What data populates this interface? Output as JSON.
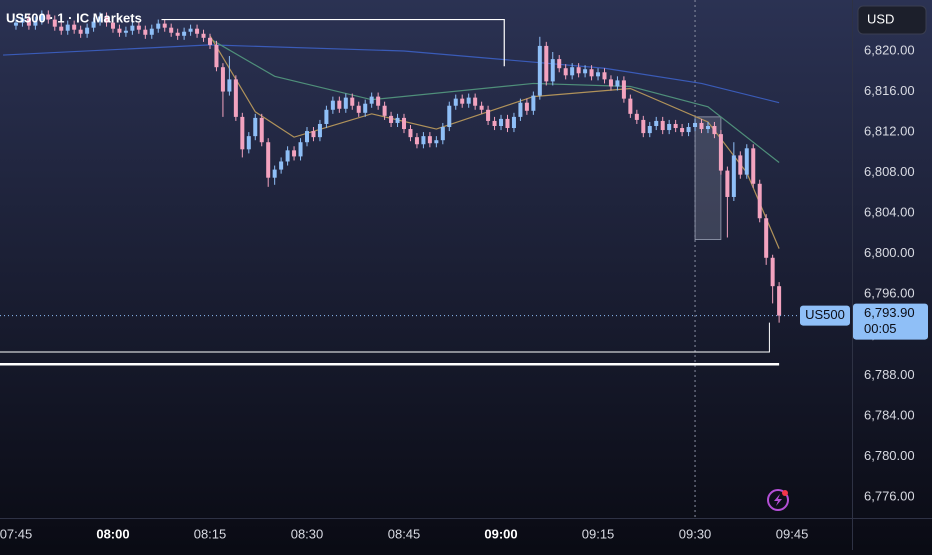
{
  "chart_data": {
    "type": "candlestick",
    "title": "US500 · 1 · IC Markets",
    "currency": "USD",
    "symbol_tag": "US500",
    "last_price": {
      "value": 6793.9,
      "label": "6,793.90"
    },
    "countdown": "00:05",
    "up_color": "#8fbff7",
    "down_color": "#f3a3bf",
    "xlim": [
      462.53,
      594.27
    ],
    "ylim": [
      6773.93,
      6825.03
    ],
    "xticks": [
      {
        "value": 465,
        "label": "07:45"
      },
      {
        "value": 480,
        "label": "08:00"
      },
      {
        "value": 495,
        "label": "08:15"
      },
      {
        "value": 510,
        "label": "08:30"
      },
      {
        "value": 525,
        "label": "08:45"
      },
      {
        "value": 540,
        "label": "09:00"
      },
      {
        "value": 555,
        "label": "09:15"
      },
      {
        "value": 570,
        "label": "09:30"
      },
      {
        "value": 585,
        "label": "09:45"
      }
    ],
    "yticks": [
      {
        "value": 6776,
        "label": "6,776.00"
      },
      {
        "value": 6780,
        "label": "6,780.00"
      },
      {
        "value": 6784,
        "label": "6,784.00"
      },
      {
        "value": 6788,
        "label": "6,788.00"
      },
      {
        "value": 6792,
        "label": "6,792.00"
      },
      {
        "value": 6796,
        "label": "6,796.00"
      },
      {
        "value": 6800,
        "label": "6,800.00"
      },
      {
        "value": 6804,
        "label": "6,804.00"
      },
      {
        "value": 6808,
        "label": "6,808.00"
      },
      {
        "value": 6812,
        "label": "6,812.00"
      },
      {
        "value": 6816,
        "label": "6,816.00"
      },
      {
        "value": 6820,
        "label": "6,820.00"
      }
    ],
    "crosshair_x": 570,
    "candles": {
      "x": [
        465,
        466,
        467,
        468,
        469,
        470,
        471,
        472,
        473,
        474,
        475,
        476,
        477,
        478,
        479,
        480,
        481,
        482,
        483,
        484,
        485,
        486,
        487,
        488,
        489,
        490,
        491,
        492,
        493,
        494,
        495,
        496,
        497,
        498,
        499,
        500,
        501,
        502,
        503,
        504,
        505,
        506,
        507,
        508,
        509,
        510,
        511,
        512,
        513,
        514,
        515,
        516,
        517,
        518,
        519,
        520,
        521,
        522,
        523,
        524,
        525,
        526,
        527,
        528,
        529,
        530,
        531,
        532,
        533,
        534,
        535,
        536,
        537,
        538,
        539,
        540,
        541,
        542,
        543,
        544,
        545,
        546,
        547,
        548,
        549,
        550,
        551,
        552,
        553,
        554,
        555,
        556,
        557,
        558,
        559,
        560,
        561,
        562,
        563,
        564,
        565,
        566,
        567,
        568,
        569,
        570,
        571,
        572,
        573,
        574,
        575,
        576,
        577,
        578,
        579,
        580,
        581,
        582,
        583
      ],
      "open": [
        6822.5,
        6822.8,
        6823.2,
        6822.5,
        6823.0,
        6823.6,
        6823.1,
        6822.4,
        6822.0,
        6822.6,
        6822.1,
        6821.7,
        6822.3,
        6822.9,
        6823.4,
        6822.8,
        6822.2,
        6821.8,
        6822.0,
        6822.5,
        6822.1,
        6821.6,
        6822.2,
        6822.7,
        6822.3,
        6821.8,
        6821.5,
        6821.9,
        6822.2,
        6821.7,
        6821.3,
        6820.6,
        6818.4,
        6816.0,
        6817.2,
        6813.5,
        6810.3,
        6811.6,
        6813.4,
        6811.0,
        6807.5,
        6808.3,
        6809.1,
        6810.2,
        6809.6,
        6811.0,
        6812.1,
        6811.5,
        6812.8,
        6814.2,
        6815.1,
        6814.3,
        6815.4,
        6814.6,
        6813.9,
        6814.8,
        6815.5,
        6814.6,
        6813.6,
        6812.9,
        6813.4,
        6812.3,
        6811.5,
        6810.8,
        6811.6,
        6810.9,
        6811.2,
        6812.5,
        6814.6,
        6815.3,
        6814.8,
        6815.4,
        6814.6,
        6814.2,
        6813.1,
        6812.6,
        6813.3,
        6812.4,
        6813.5,
        6814.9,
        6814.1,
        6815.6,
        6820.5,
        6817.0,
        6819.2,
        6818.3,
        6817.6,
        6818.4,
        6817.8,
        6818.2,
        6817.5,
        6817.9,
        6817.2,
        6816.5,
        6817.1,
        6815.3,
        6813.8,
        6813.2,
        6811.9,
        6812.6,
        6813.1,
        6812.2,
        6812.8,
        6812.4,
        6812.0,
        6812.5,
        6812.9,
        6812.3,
        6812.6,
        6811.8,
        6808.2,
        6805.6,
        6809.7,
        6807.8,
        6810.4,
        6806.9,
        6803.5,
        6799.6,
        6796.8
      ],
      "high": [
        6823.2,
        6823.6,
        6823.6,
        6823.4,
        6824.0,
        6824.0,
        6823.5,
        6822.8,
        6823.0,
        6823.0,
        6822.5,
        6822.7,
        6823.3,
        6823.8,
        6823.8,
        6823.2,
        6822.6,
        6822.4,
        6822.9,
        6822.9,
        6822.5,
        6822.6,
        6823.1,
        6823.1,
        6822.7,
        6822.2,
        6822.3,
        6822.6,
        6822.6,
        6822.1,
        6821.7,
        6821.0,
        6818.8,
        6819.5,
        6817.6,
        6813.9,
        6812.0,
        6813.8,
        6813.8,
        6811.4,
        6808.7,
        6809.5,
        6810.6,
        6810.6,
        6811.4,
        6812.5,
        6812.5,
        6813.2,
        6814.6,
        6815.5,
        6815.5,
        6815.8,
        6815.8,
        6815.0,
        6815.2,
        6815.9,
        6815.9,
        6815.0,
        6814.0,
        6813.8,
        6813.8,
        6812.7,
        6811.9,
        6812.0,
        6812.0,
        6811.6,
        6812.9,
        6815.0,
        6815.7,
        6815.7,
        6815.8,
        6815.8,
        6815.0,
        6814.6,
        6813.5,
        6813.7,
        6813.7,
        6813.9,
        6815.3,
        6815.3,
        6816.0,
        6821.4,
        6820.9,
        6819.9,
        6819.6,
        6818.7,
        6818.8,
        6818.8,
        6818.6,
        6818.6,
        6818.3,
        6818.3,
        6817.6,
        6817.5,
        6817.5,
        6815.7,
        6814.2,
        6813.6,
        6813.0,
        6813.5,
        6813.5,
        6813.2,
        6813.2,
        6812.8,
        6812.9,
        6813.3,
        6813.3,
        6813.0,
        6813.0,
        6812.2,
        6808.6,
        6811.0,
        6810.1,
        6810.8,
        6810.8,
        6807.3,
        6803.9,
        6799.9,
        6797.2
      ],
      "low": [
        6822.1,
        6822.4,
        6822.1,
        6822.1,
        6822.6,
        6822.7,
        6822.0,
        6821.6,
        6821.6,
        6821.7,
        6821.3,
        6821.3,
        6821.9,
        6822.5,
        6822.4,
        6821.8,
        6821.4,
        6821.4,
        6821.6,
        6821.7,
        6821.2,
        6821.2,
        6821.8,
        6821.9,
        6821.4,
        6821.1,
        6821.1,
        6821.5,
        6821.3,
        6820.9,
        6820.2,
        6818.0,
        6813.5,
        6815.6,
        6813.1,
        6809.5,
        6809.9,
        6811.2,
        6810.6,
        6806.6,
        6806.8,
        6807.9,
        6808.7,
        6809.2,
        6809.2,
        6810.6,
        6811.1,
        6811.1,
        6812.4,
        6813.8,
        6813.9,
        6813.9,
        6814.2,
        6813.5,
        6813.5,
        6814.4,
        6814.2,
        6813.2,
        6812.5,
        6812.5,
        6811.9,
        6811.1,
        6810.4,
        6810.4,
        6810.5,
        6810.5,
        6810.8,
        6812.1,
        6814.2,
        6814.4,
        6814.4,
        6814.2,
        6813.8,
        6812.7,
        6812.2,
        6812.2,
        6812.0,
        6812.0,
        6813.1,
        6813.7,
        6813.7,
        6815.2,
        6816.6,
        6816.6,
        6817.9,
        6817.2,
        6817.2,
        6817.4,
        6817.4,
        6817.1,
        6817.1,
        6816.8,
        6816.1,
        6816.1,
        6814.9,
        6813.4,
        6812.8,
        6811.5,
        6811.5,
        6812.2,
        6811.8,
        6811.8,
        6812.0,
        6811.6,
        6811.6,
        6812.1,
        6811.9,
        6811.9,
        6811.4,
        6807.8,
        6801.6,
        6805.2,
        6807.4,
        6807.4,
        6806.5,
        6803.1,
        6798.9,
        6795.1,
        6793.2
      ],
      "close": [
        6822.8,
        6823.2,
        6822.5,
        6823.0,
        6823.6,
        6823.1,
        6822.4,
        6822.0,
        6822.6,
        6822.1,
        6821.7,
        6822.3,
        6822.9,
        6823.4,
        6822.8,
        6822.2,
        6821.8,
        6822.0,
        6822.5,
        6822.1,
        6821.6,
        6822.2,
        6822.7,
        6822.3,
        6821.8,
        6821.5,
        6821.9,
        6822.2,
        6821.7,
        6821.3,
        6820.6,
        6818.4,
        6816.0,
        6817.2,
        6813.5,
        6810.3,
        6811.6,
        6813.4,
        6811.0,
        6807.5,
        6808.3,
        6809.1,
        6810.2,
        6809.6,
        6811.0,
        6812.1,
        6811.5,
        6812.8,
        6814.2,
        6815.1,
        6814.3,
        6815.4,
        6814.6,
        6813.9,
        6814.8,
        6815.5,
        6814.6,
        6813.6,
        6812.9,
        6813.4,
        6812.3,
        6811.5,
        6810.8,
        6811.6,
        6810.9,
        6811.2,
        6812.5,
        6814.6,
        6815.3,
        6814.8,
        6815.4,
        6814.6,
        6814.2,
        6813.1,
        6812.6,
        6813.3,
        6812.4,
        6813.5,
        6814.9,
        6814.1,
        6815.6,
        6820.5,
        6817.0,
        6819.2,
        6818.3,
        6817.6,
        6818.4,
        6817.8,
        6818.2,
        6817.5,
        6817.9,
        6817.2,
        6816.5,
        6817.1,
        6815.3,
        6813.8,
        6813.2,
        6811.9,
        6812.6,
        6813.1,
        6812.2,
        6812.8,
        6812.4,
        6812.0,
        6812.5,
        6812.9,
        6812.3,
        6812.6,
        6811.8,
        6808.2,
        6805.6,
        6809.7,
        6807.8,
        6810.4,
        6806.9,
        6803.5,
        6799.6,
        6796.8,
        6793.9
      ]
    },
    "overlays": [
      {
        "color": "#3a5bb8",
        "x": [
          463,
          495,
          525,
          556,
          571,
          583
        ],
        "values": [
          6819.6,
          6820.6,
          6820.0,
          6818.3,
          6816.8,
          6814.9
        ]
      },
      {
        "color": "#4f8f7a",
        "x": [
          495,
          505,
          520,
          545,
          560,
          572,
          583
        ],
        "values": [
          6821.2,
          6817.5,
          6815.2,
          6816.8,
          6816.5,
          6814.5,
          6809.0
        ]
      },
      {
        "color": "#b0925a",
        "x": [
          495,
          502,
          508,
          520,
          530,
          545,
          560,
          572,
          578,
          583
        ],
        "values": [
          6821.5,
          6814.0,
          6811.5,
          6813.8,
          6812.3,
          6815.5,
          6816.3,
          6813.0,
          6808.0,
          6800.5
        ]
      }
    ],
    "drawings": [
      {
        "x": [
          487.5,
          540.5,
          540.5
        ],
        "values": [
          6823.1,
          6823.1,
          6818.5
        ],
        "width": 1.2
      },
      {
        "x": [
          462.53,
          581.5,
          581.5
        ],
        "values": [
          6790.3,
          6790.3,
          6793.2
        ],
        "width": 1
      },
      {
        "x": [
          462.53,
          583
        ],
        "values": [
          6789.1,
          6789.1
        ],
        "width": 2.5
      }
    ],
    "box": {
      "x": [
        570,
        574
      ],
      "values": [
        6813.5,
        6801.4
      ]
    }
  }
}
